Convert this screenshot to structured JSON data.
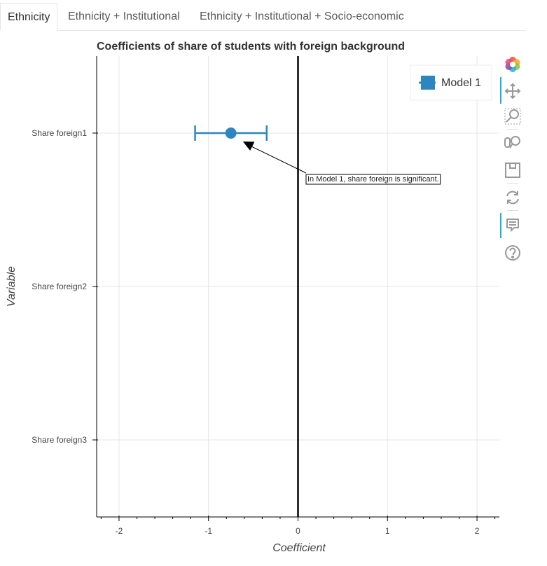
{
  "tabs": [
    {
      "label": "Ethnicity",
      "active": true
    },
    {
      "label": "Ethnicity + Institutional",
      "active": false
    },
    {
      "label": "Ethnicity + Institutional + Socio-economic",
      "active": false
    }
  ],
  "toolbar": {
    "tools": [
      "bokeh-logo-icon",
      "pan-icon",
      "box-zoom-icon",
      "wheel-zoom-icon",
      "save-icon",
      "reset-icon",
      "hover-icon",
      "help-icon"
    ]
  },
  "colors": {
    "series": "#2e86c1",
    "axis": "#000000",
    "grid": "#e5e5e5",
    "zero_line": "#000000"
  },
  "chart_data": {
    "type": "scatter",
    "title": "Coefficients of share of students with foreign background",
    "xlabel": "Coefficient",
    "ylabel": "Variable",
    "xlim": [
      -2.25,
      2.25
    ],
    "x_ticks": [
      -2,
      -1,
      0,
      1,
      2
    ],
    "categories": [
      "Share foreign1",
      "Share foreign2",
      "Share foreign3"
    ],
    "grid": true,
    "legend_position": "top-right",
    "series": [
      {
        "name": "Model 1",
        "points": [
          {
            "category": "Share foreign1",
            "estimate": -0.75,
            "ci_low": -1.15,
            "ci_high": -0.35
          }
        ]
      }
    ],
    "reference_line_x": 0,
    "annotation": {
      "text": "In Model 1, share foreign is significant.",
      "points_to": {
        "category": "Share foreign1",
        "x": -0.6
      }
    }
  }
}
